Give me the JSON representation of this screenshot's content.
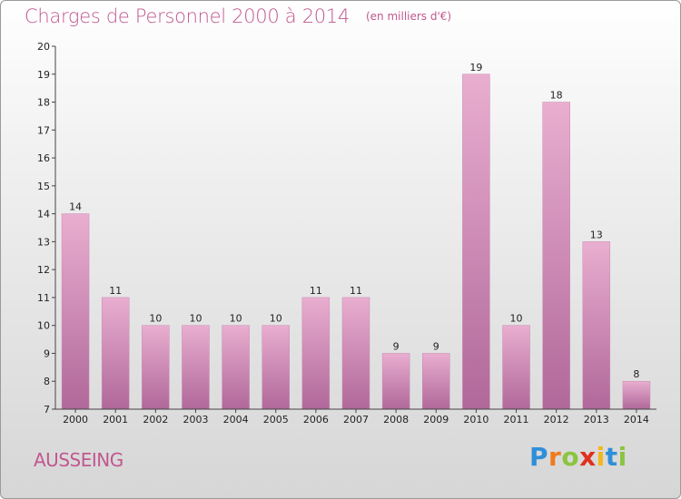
{
  "header": {
    "title": "Charges de Personnel 2000 à 2014",
    "unit_note": "(en milliers d'€)"
  },
  "footer": {
    "commune": "AUSSEING",
    "logo_text": "Proxiti"
  },
  "colors": {
    "bar_light": "#e9aed0",
    "bar_dark": "#b0689a",
    "text_accent": "#c05890"
  },
  "chart_data": {
    "type": "bar",
    "title": "Charges de Personnel 2000 à 2014",
    "subtitle": "(en milliers d'€)",
    "categories": [
      "2000",
      "2001",
      "2002",
      "2003",
      "2004",
      "2005",
      "2006",
      "2007",
      "2008",
      "2009",
      "2010",
      "2011",
      "2012",
      "2013",
      "2014"
    ],
    "values": [
      14,
      11,
      10,
      10,
      10,
      10,
      11,
      11,
      9,
      9,
      19,
      10,
      18,
      13,
      8
    ],
    "ylim": [
      7,
      20
    ],
    "yticks": [
      7,
      8,
      9,
      10,
      11,
      12,
      13,
      14,
      15,
      16,
      17,
      18,
      19,
      20
    ],
    "xlabel": "",
    "ylabel": "",
    "grid": false,
    "legend": "none"
  }
}
